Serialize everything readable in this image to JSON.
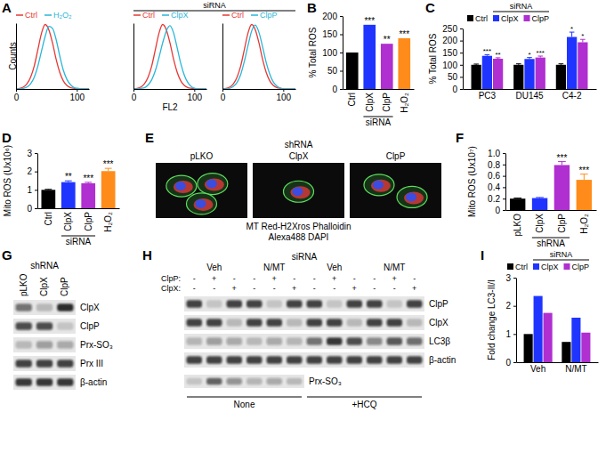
{
  "chart_data": [
    {
      "type": "line",
      "title": "A",
      "y_label": "Counts",
      "legend": "top",
      "tick_labels": "x",
      "x": [
        0,
        6,
        12,
        18,
        24,
        30,
        36,
        42,
        48,
        54,
        60,
        66,
        72,
        78,
        84,
        90,
        96,
        102,
        108,
        114,
        120
      ],
      "xlim": [
        0,
        120
      ],
      "xticks": [
        0,
        100
      ],
      "ylim": [
        0,
        100
      ],
      "series": [
        {
          "name": "Ctrl",
          "color": "#e53935",
          "values": [
            0,
            1,
            3,
            8,
            18,
            35,
            60,
            85,
            98,
            90,
            70,
            45,
            25,
            12,
            5,
            2,
            1,
            0,
            0,
            0,
            0
          ]
        },
        {
          "name": "H₂O₂",
          "color": "#29b6d8",
          "values": [
            0,
            0,
            1,
            3,
            8,
            18,
            35,
            58,
            80,
            95,
            92,
            75,
            50,
            28,
            14,
            6,
            2,
            1,
            0,
            0,
            0
          ]
        }
      ]
    },
    {
      "type": "line",
      "x_label": "FL2",
      "legend": "top",
      "tick_labels": "x",
      "annotations": [
        {
          "text": "siRNA"
        }
      ],
      "x": [
        0,
        6,
        12,
        18,
        24,
        30,
        36,
        42,
        48,
        54,
        60,
        66,
        72,
        78,
        84,
        90,
        96,
        102,
        108,
        114,
        120
      ],
      "xlim": [
        0,
        120
      ],
      "xticks": [
        0,
        100
      ],
      "ylim": [
        0,
        100
      ],
      "series": [
        {
          "name": "Ctrl",
          "color": "#e53935",
          "values": [
            0,
            1,
            3,
            8,
            18,
            35,
            60,
            85,
            98,
            90,
            70,
            45,
            25,
            12,
            5,
            2,
            1,
            0,
            0,
            0,
            0
          ]
        },
        {
          "name": "ClpX",
          "color": "#29b6d8",
          "values": [
            0,
            0,
            1,
            2,
            6,
            14,
            28,
            48,
            70,
            88,
            96,
            85,
            62,
            38,
            20,
            9,
            3,
            1,
            0,
            0,
            0
          ]
        }
      ]
    },
    {
      "type": "line",
      "legend": "top",
      "tick_labels": "x",
      "x": [
        0,
        6,
        12,
        18,
        24,
        30,
        36,
        42,
        48,
        54,
        60,
        66,
        72,
        78,
        84,
        90,
        96,
        102,
        108,
        114,
        120
      ],
      "xlim": [
        0,
        120
      ],
      "xticks": [
        0,
        100
      ],
      "ylim": [
        0,
        100
      ],
      "series": [
        {
          "name": "Ctrl",
          "color": "#e53935",
          "values": [
            0,
            1,
            3,
            8,
            18,
            35,
            60,
            85,
            98,
            90,
            70,
            45,
            25,
            12,
            5,
            2,
            1,
            0,
            0,
            0,
            0
          ]
        },
        {
          "name": "ClpP",
          "color": "#29b6d8",
          "values": [
            0,
            0,
            1,
            4,
            10,
            22,
            42,
            66,
            88,
            97,
            86,
            64,
            40,
            22,
            10,
            4,
            1,
            0,
            0,
            0,
            0
          ]
        }
      ]
    },
    {
      "type": "bar",
      "title": "B",
      "y_label": "% Total ROS",
      "categories": [
        "Ctrl",
        "ClpX",
        "ClpP",
        "H₂O₂"
      ],
      "values": [
        100,
        176,
        124,
        139
      ],
      "colors": [
        "#000000",
        "#1f35ff",
        "#b02fd0",
        "#ff8c1a"
      ],
      "significance": [
        null,
        "***",
        "**",
        "***"
      ],
      "ylim": [
        0,
        200
      ],
      "yticks": [
        0,
        50,
        100,
        150,
        200
      ],
      "annotations": [
        {
          "text": "siRNA",
          "over": [
            "ClpX",
            "ClpP"
          ]
        }
      ]
    },
    {
      "type": "bar",
      "title": "C",
      "y_label": "% Total ROS",
      "legend": "top",
      "categories": [
        "PC3",
        "DU145",
        "C4-2"
      ],
      "series": [
        {
          "name": "Ctrl",
          "color": "#000000",
          "values": [
            100,
            100,
            100
          ],
          "errors": [
            3,
            4,
            4
          ]
        },
        {
          "name": "ClpX",
          "color": "#1f35ff",
          "values": [
            137,
            124,
            215
          ],
          "errors": [
            5,
            6,
            20
          ],
          "significance": [
            "***",
            "*",
            "*"
          ]
        },
        {
          "name": "ClpP",
          "color": "#b02fd0",
          "values": [
            125,
            130,
            193
          ],
          "errors": [
            4,
            6,
            12
          ],
          "significance": [
            "**",
            "***",
            "*"
          ]
        }
      ],
      "ylim": [
        0,
        250
      ],
      "yticks": [
        0,
        50,
        100,
        150,
        200,
        250
      ],
      "annotations": [
        {
          "text": "siRNA",
          "over": [
            "ClpX",
            "ClpP"
          ]
        }
      ]
    },
    {
      "type": "bar",
      "title": "D",
      "y_label": "Mito ROS (Ux10⁶)",
      "categories": [
        "Ctrl",
        "ClpX",
        "ClpP",
        "H₂O₂"
      ],
      "values": [
        1.0,
        1.42,
        1.36,
        2.02
      ],
      "errors": [
        0.03,
        0.07,
        0.05,
        0.15
      ],
      "colors": [
        "#000000",
        "#1f35ff",
        "#b02fd0",
        "#ff8c1a"
      ],
      "significance": [
        null,
        "**",
        "***",
        "***"
      ],
      "ylim": [
        0,
        3
      ],
      "yticks": [
        0,
        1,
        2,
        3
      ],
      "annotations": [
        {
          "text": "siRNA",
          "over": [
            "ClpX",
            "ClpP"
          ]
        }
      ]
    },
    {
      "type": "image",
      "title": "E",
      "header": "shRNA",
      "images": [
        "pLKO",
        "ClpX",
        "ClpP"
      ],
      "caption": [
        "MT Red-H2Xros Phalloidin",
        "Alexa488 DAPI"
      ]
    },
    {
      "type": "bar",
      "title": "F",
      "y_label": "Mito ROS (Ux10⁷)",
      "categories": [
        "pLKO",
        "ClpX",
        "ClpP",
        "H₂O₂"
      ],
      "values": [
        0.2,
        0.21,
        0.79,
        0.53
      ],
      "errors": [
        0.01,
        0.01,
        0.06,
        0.1
      ],
      "colors": [
        "#000000",
        "#1f35ff",
        "#b02fd0",
        "#ff8c1a"
      ],
      "significance": [
        null,
        null,
        "***",
        "***"
      ],
      "ylim": [
        0,
        1
      ],
      "yticks": [
        0,
        0.2,
        0.4,
        0.6,
        0.8,
        {
          "value": 1,
          "label": "1.0"
        }
      ],
      "annotations": [
        {
          "text": "shRNA",
          "over": [
            "ClpX",
            "ClpP"
          ]
        }
      ]
    },
    {
      "type": "blot",
      "title": "G",
      "header": "shRNA",
      "lanes": [
        "pLKO",
        "ClpX",
        "ClpP"
      ],
      "rows": [
        {
          "label": "ClpX",
          "intensities": [
            0.55,
            0.2,
            0.9
          ]
        },
        {
          "label": "ClpP",
          "intensities": [
            0.75,
            0.75,
            0.15
          ]
        },
        {
          "label": "Prx-SO₃",
          "intensities": [
            0.2,
            0.35,
            0.3
          ]
        },
        {
          "label": "Prx III",
          "intensities": [
            0.8,
            0.8,
            0.8
          ]
        },
        {
          "label": "β-actin",
          "intensities": [
            0.85,
            0.85,
            0.85
          ]
        }
      ]
    },
    {
      "type": "blot",
      "title": "H",
      "header": "siRNA",
      "groups": [
        "Veh",
        "N/MT",
        "Veh",
        "N/MT"
      ],
      "treatment_rows": [
        {
          "label": "ClpP:",
          "marks": [
            "-",
            "+",
            "-",
            "-",
            "+",
            "-",
            "-",
            "+",
            "-",
            "-",
            "+",
            "-"
          ]
        },
        {
          "label": "ClpX:",
          "marks": [
            "-",
            "-",
            "+",
            "-",
            "-",
            "+",
            "-",
            "-",
            "+",
            "-",
            "-",
            "+"
          ]
        }
      ],
      "rows": [
        {
          "label": "ClpP",
          "intensities": [
            0.8,
            0.15,
            0.8,
            0.8,
            0.15,
            0.8,
            0.8,
            0.15,
            0.8,
            0.8,
            0.15,
            0.8
          ]
        },
        {
          "label": "ClpX",
          "intensities": [
            0.8,
            0.8,
            0.2,
            0.8,
            0.8,
            0.2,
            0.8,
            0.8,
            0.2,
            0.8,
            0.8,
            0.2
          ]
        },
        {
          "label": "LC3β",
          "intensities": [
            0.25,
            0.35,
            0.3,
            0.2,
            0.3,
            0.25,
            0.55,
            0.85,
            0.75,
            0.45,
            0.7,
            0.6
          ]
        },
        {
          "label": "β-actin",
          "intensities": [
            0.8,
            0.8,
            0.8,
            0.8,
            0.8,
            0.8,
            0.8,
            0.8,
            0.8,
            0.8,
            0.8,
            0.8
          ]
        }
      ],
      "lower_rows": [
        {
          "label": "Prx-SO₃",
          "intensities": [
            0.15,
            0.65,
            0.4,
            0.25,
            0.3,
            0.2
          ]
        }
      ],
      "conditions": [
        "None",
        "+HCQ"
      ]
    },
    {
      "type": "bar",
      "title": "I",
      "y_label": "Fold change LC3-II/I",
      "legend": "top",
      "categories": [
        "Veh",
        "N/MT"
      ],
      "series": [
        {
          "name": "Ctrl",
          "color": "#000000",
          "values": [
            1.0,
            0.72
          ]
        },
        {
          "name": "ClpX",
          "color": "#1f35ff",
          "values": [
            2.35,
            1.58
          ]
        },
        {
          "name": "ClpP",
          "color": "#b02fd0",
          "values": [
            1.75,
            1.05
          ]
        }
      ],
      "ylim": [
        0,
        3
      ],
      "yticks": [
        0,
        1,
        2,
        3
      ],
      "annotations": [
        {
          "text": "siRNA",
          "over": [
            "ClpX",
            "ClpP"
          ]
        }
      ]
    }
  ]
}
